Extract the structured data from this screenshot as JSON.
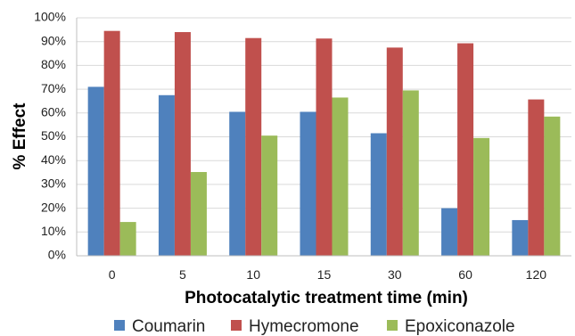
{
  "chart_data": {
    "type": "bar",
    "title": "",
    "xlabel": "Photocatalytic treatment time (min)",
    "ylabel": "% Effect",
    "categories": [
      "0",
      "5",
      "10",
      "15",
      "30",
      "60",
      "120"
    ],
    "y_tick_labels": [
      "0%",
      "10%",
      "20%",
      "30%",
      "40%",
      "50%",
      "60%",
      "70%",
      "80%",
      "90%",
      "100%"
    ],
    "ylim": [
      0,
      1
    ],
    "grid": true,
    "legend_position": "bottom",
    "series": [
      {
        "name": "Coumarin",
        "color": "#4F81BD",
        "values": [
          0.71,
          0.675,
          0.605,
          0.605,
          0.515,
          0.2,
          0.15
        ]
      },
      {
        "name": "Hymecromone",
        "color": "#C0504D",
        "values": [
          0.945,
          0.94,
          0.915,
          0.913,
          0.875,
          0.893,
          0.657
        ]
      },
      {
        "name": "Epoxiconazole",
        "color": "#9BBB59",
        "values": [
          0.142,
          0.352,
          0.505,
          0.665,
          0.695,
          0.495,
          0.585
        ]
      }
    ]
  }
}
